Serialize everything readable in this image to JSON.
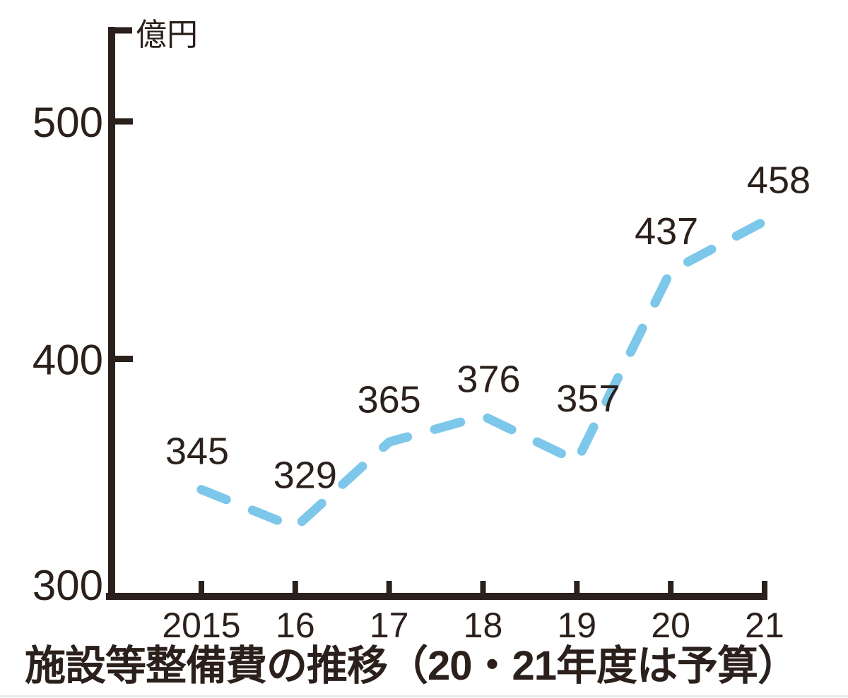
{
  "chart_data": {
    "type": "line",
    "line_style": "dashed",
    "title": "施設等整備費の推移（20・21年度は予算）",
    "ylabel": "億円",
    "xlabel": "",
    "categories": [
      "2015",
      "16",
      "17",
      "18",
      "19",
      "20",
      "21"
    ],
    "values": [
      345,
      329,
      365,
      376,
      357,
      437,
      458
    ],
    "data_labels": [
      "345",
      "329",
      "365",
      "376",
      "357",
      "437",
      "458"
    ],
    "y_ticks": [
      500,
      400,
      300
    ],
    "ylim": [
      300,
      540
    ],
    "grid": false,
    "legend": false,
    "colors": {
      "line": "#7dc7ea",
      "text": "#2b201b",
      "axis": "#2b201b",
      "divider": "#e7eaee"
    }
  }
}
